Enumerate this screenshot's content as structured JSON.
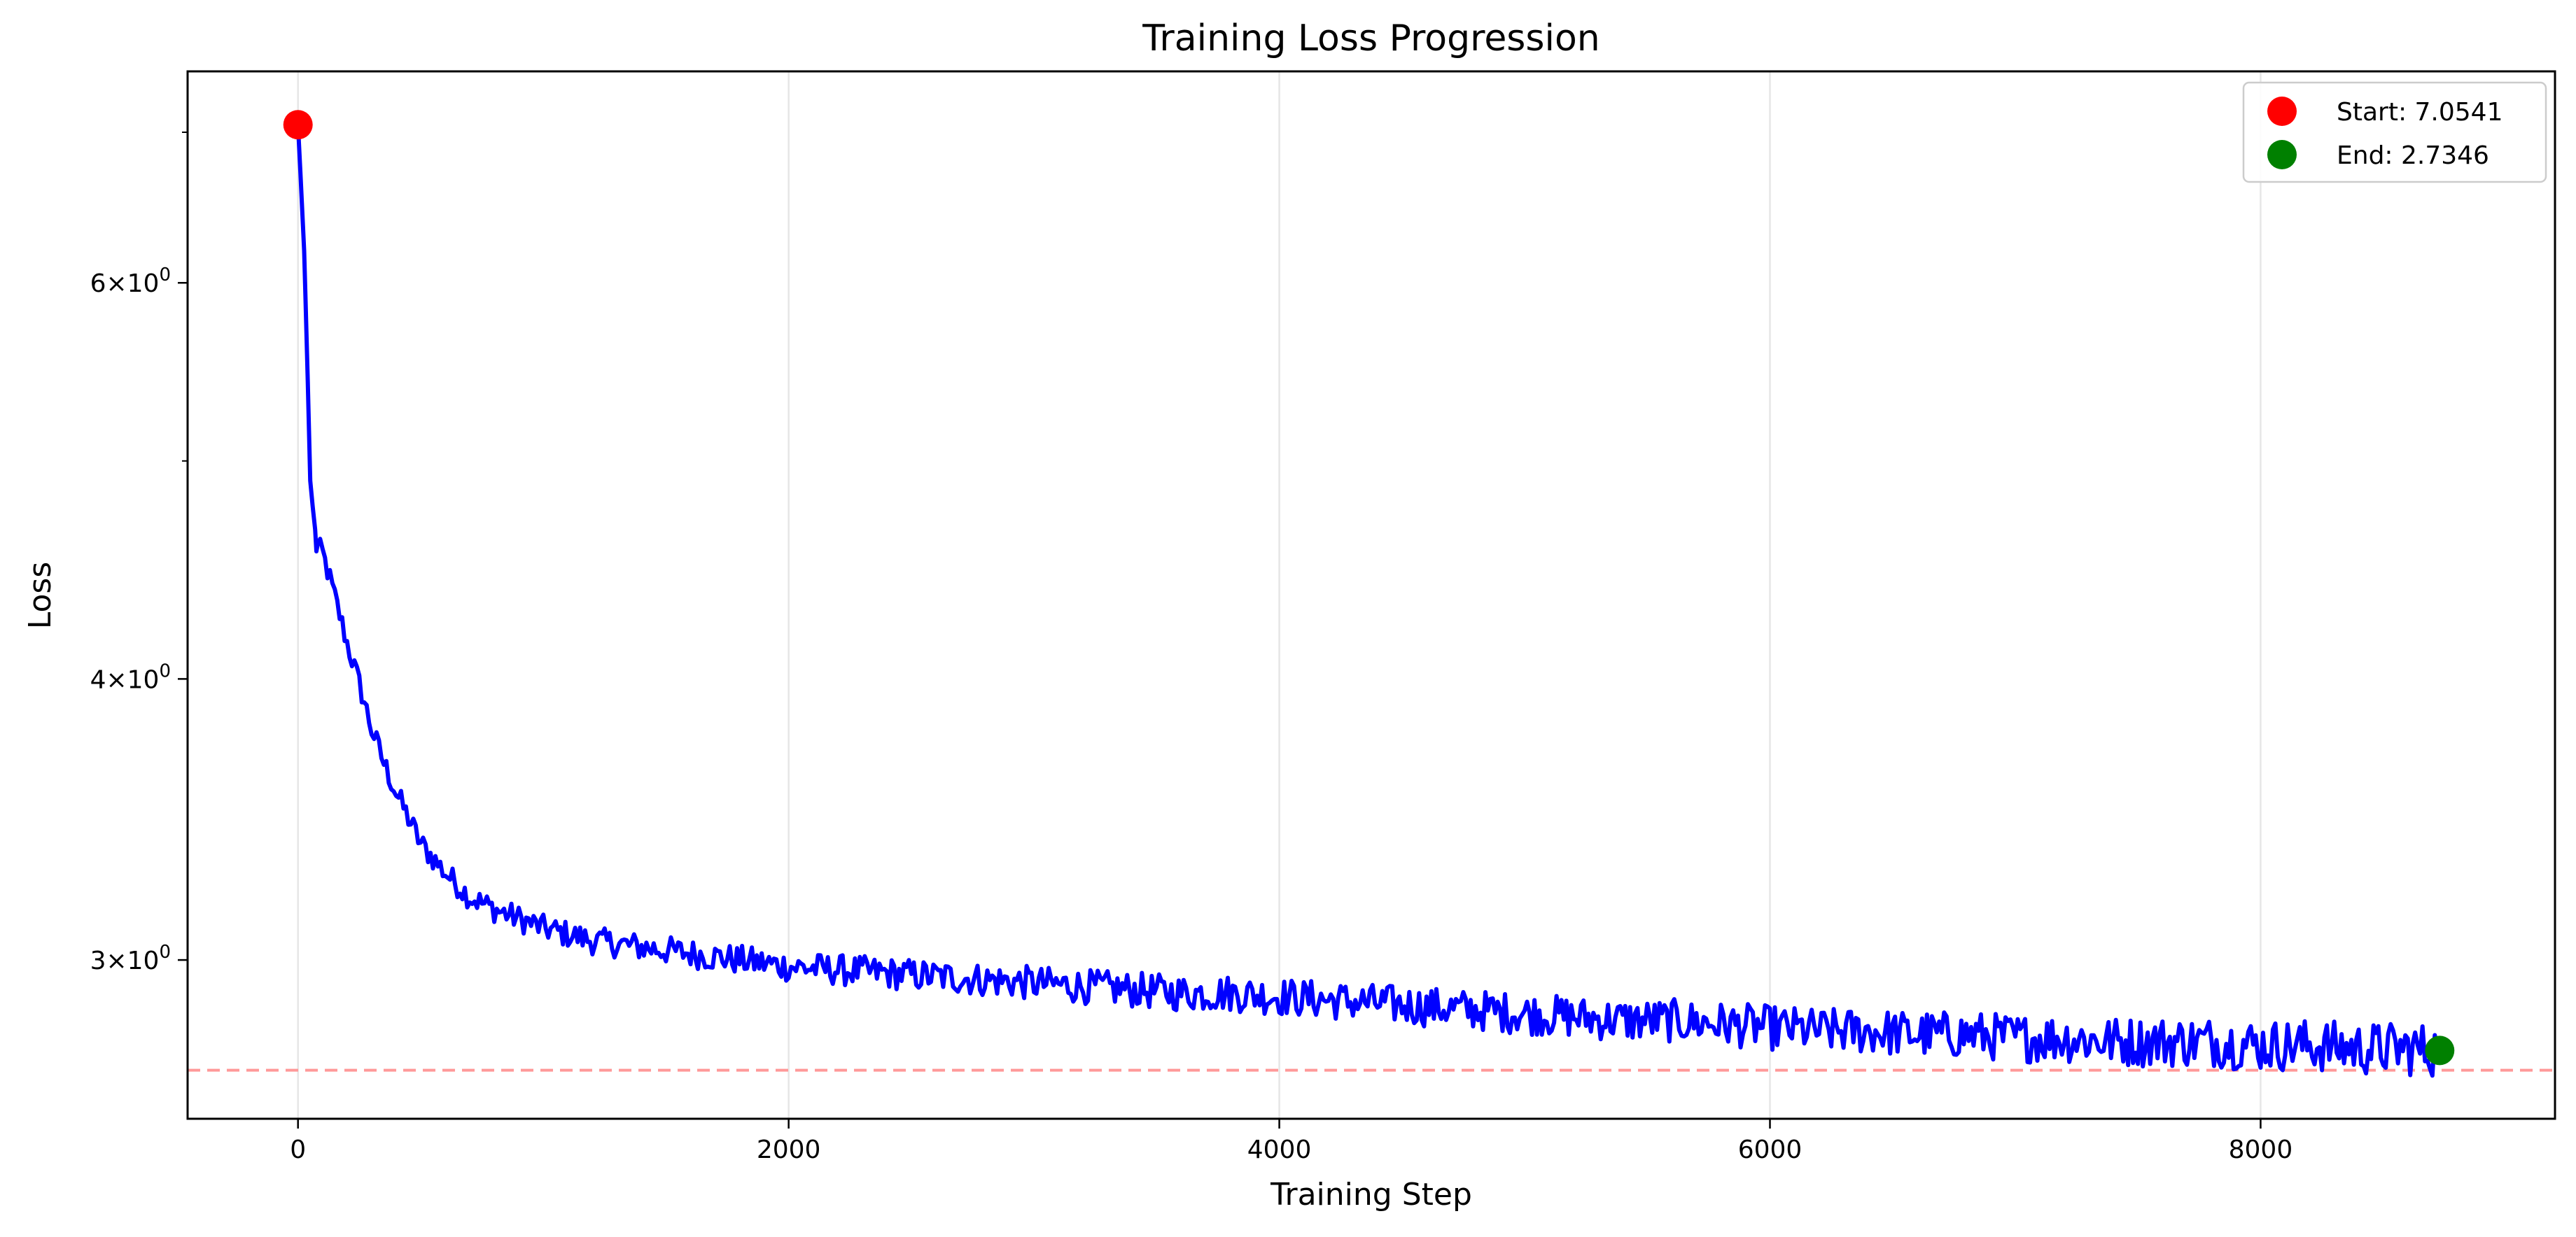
{
  "chart_data": {
    "type": "line",
    "title": "Training Loss Progression",
    "xlabel": "Training Step",
    "ylabel": "Loss",
    "xlim": [
      -450,
      9200
    ],
    "ylim": [
      2.55,
      7.45
    ],
    "yscale": "log",
    "grid": "x-major",
    "legend_position": "top-right",
    "x_ticks": [
      {
        "value": 0,
        "label": "0"
      },
      {
        "value": 2000,
        "label": "2000"
      },
      {
        "value": 4000,
        "label": "4000"
      },
      {
        "value": 6000,
        "label": "6000"
      },
      {
        "value": 8000,
        "label": "8000"
      }
    ],
    "y_ticks": [
      {
        "value": 3,
        "base": "3",
        "exp": "0"
      },
      {
        "value": 4,
        "base": "4",
        "exp": "0"
      },
      {
        "value": 6,
        "base": "6",
        "exp": "0"
      }
    ],
    "y_minor_ticks": [
      5,
      7
    ],
    "tick_times_sign": "×",
    "tick_base_ten": "10",
    "series": [
      {
        "color": "#0000ff",
        "x": [
          0,
          25,
          50,
          75,
          100,
          150,
          200,
          250,
          300,
          350,
          400,
          450,
          500,
          550,
          600,
          650,
          700,
          800,
          900,
          1000,
          1100,
          1200,
          1300,
          1400,
          1500,
          1600,
          1700,
          1800,
          1900,
          2000,
          2200,
          2400,
          2600,
          2800,
          3000,
          3200,
          3400,
          3600,
          3800,
          4000,
          4200,
          4400,
          4600,
          4800,
          5000,
          5200,
          5400,
          5600,
          5800,
          6000,
          6200,
          6400,
          6600,
          6800,
          7000,
          7200,
          7400,
          7600,
          7800,
          8000,
          8200,
          8400,
          8600,
          8730
        ],
        "y": [
          7.0541,
          6.2,
          4.9,
          4.58,
          4.55,
          4.35,
          4.15,
          3.98,
          3.8,
          3.67,
          3.56,
          3.47,
          3.38,
          3.33,
          3.28,
          3.24,
          3.2,
          3.16,
          3.13,
          3.1,
          3.08,
          3.06,
          3.05,
          3.04,
          3.03,
          3.02,
          3.01,
          3.0,
          2.99,
          2.98,
          2.97,
          2.96,
          2.95,
          2.94,
          2.93,
          2.92,
          2.91,
          2.9,
          2.9,
          2.89,
          2.88,
          2.87,
          2.86,
          2.85,
          2.84,
          2.83,
          2.82,
          2.82,
          2.81,
          2.8,
          2.79,
          2.79,
          2.78,
          2.78,
          2.77,
          2.77,
          2.76,
          2.76,
          2.76,
          2.75,
          2.75,
          2.74,
          2.74,
          2.7346
        ]
      }
    ],
    "markers": [
      {
        "label": "Start: 7.0541",
        "x": 0,
        "y": 7.0541,
        "color": "#ff0000"
      },
      {
        "label": "End: 2.7346",
        "x": 8730,
        "y": 2.7346,
        "color": "#008000"
      }
    ],
    "reference_line": {
      "y": 2.68,
      "color": "#ff9999",
      "style": "dashed"
    }
  }
}
